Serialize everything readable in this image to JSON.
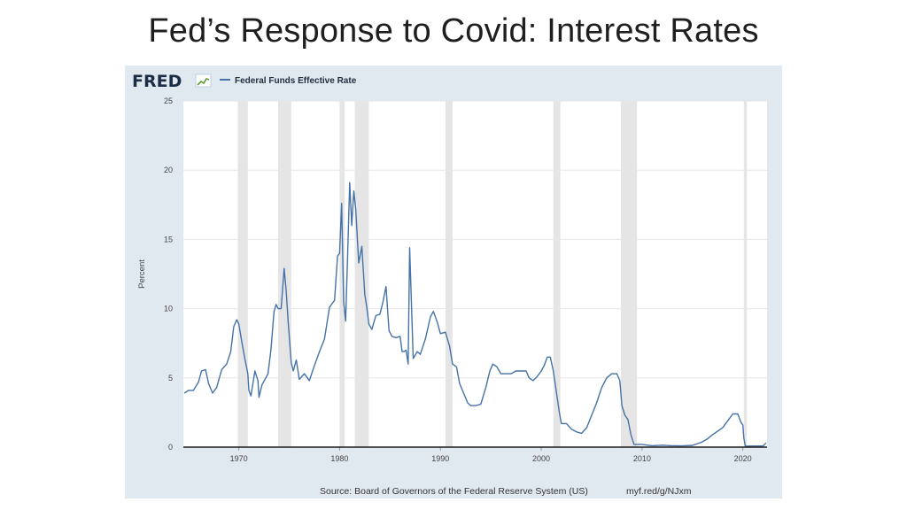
{
  "slide": {
    "title": "Fed’s Response to Covid: Interest Rates"
  },
  "logo": {
    "text": "FRED"
  },
  "colors": {
    "series": "#4572a7",
    "panel": "#e1e9f0",
    "plot": "#ffffff",
    "recession": "#e5e5e5"
  },
  "source": {
    "text": "Source: Board of Governors of the Federal Reserve System (US)",
    "url": "myf.red/g/NJxm"
  },
  "chart_data": {
    "type": "line",
    "title": "",
    "xlabel": "",
    "ylabel": "Percent",
    "xlim": [
      1964.5,
      2022.4
    ],
    "ylim": [
      0,
      25
    ],
    "x_ticks": [
      1970,
      1980,
      1990,
      2000,
      2010,
      2020
    ],
    "y_ticks": [
      0,
      5,
      10,
      15,
      20,
      25
    ],
    "grid": true,
    "legend": "top-left",
    "recessions": [
      [
        1969.9,
        1970.9
      ],
      [
        1973.9,
        1975.2
      ],
      [
        1980.0,
        1980.5
      ],
      [
        1981.5,
        1982.9
      ],
      [
        1990.5,
        1991.2
      ],
      [
        2001.2,
        2001.9
      ],
      [
        2007.9,
        2009.5
      ],
      [
        2020.1,
        2020.4
      ]
    ],
    "series": [
      {
        "name": "Federal Funds Effective Rate",
        "x": [
          1964.6,
          1965.0,
          1965.5,
          1966.0,
          1966.3,
          1966.7,
          1967.0,
          1967.4,
          1967.8,
          1968.3,
          1968.8,
          1969.2,
          1969.5,
          1969.8,
          1970.0,
          1970.3,
          1970.6,
          1970.9,
          1971.0,
          1971.2,
          1971.6,
          1971.9,
          1972.0,
          1972.3,
          1972.6,
          1972.9,
          1973.2,
          1973.5,
          1973.7,
          1973.9,
          1974.2,
          1974.5,
          1974.7,
          1974.9,
          1975.2,
          1975.4,
          1975.7,
          1976.0,
          1976.5,
          1977.0,
          1977.5,
          1978.0,
          1978.5,
          1979.0,
          1979.5,
          1979.8,
          1980.0,
          1980.2,
          1980.4,
          1980.6,
          1980.8,
          1981.0,
          1981.2,
          1981.4,
          1981.6,
          1981.9,
          1982.2,
          1982.5,
          1982.7,
          1982.9,
          1983.2,
          1983.6,
          1984.0,
          1984.3,
          1984.6,
          1984.9,
          1985.2,
          1985.6,
          1986.0,
          1986.2,
          1986.4,
          1986.6,
          1986.8,
          1986.95,
          1987.3,
          1987.7,
          1988.0,
          1988.5,
          1989.0,
          1989.3,
          1989.7,
          1990.0,
          1990.5,
          1990.9,
          1991.2,
          1991.6,
          1991.9,
          1992.3,
          1992.7,
          1993.0,
          1993.5,
          1994.0,
          1994.5,
          1994.9,
          1995.2,
          1995.6,
          1996.0,
          1996.5,
          1997.0,
          1997.5,
          1998.0,
          1998.5,
          1998.8,
          1999.2,
          1999.6,
          2000.0,
          2000.3,
          2000.6,
          2000.9,
          2001.2,
          2001.5,
          2001.8,
          2002.0,
          2002.5,
          2003.0,
          2003.5,
          2004.0,
          2004.5,
          2005.0,
          2005.5,
          2006.0,
          2006.5,
          2007.0,
          2007.5,
          2007.8,
          2008.0,
          2008.3,
          2008.6,
          2008.9,
          2009.2,
          2010.0,
          2011.0,
          2012.0,
          2013.0,
          2014.0,
          2015.0,
          2015.9,
          2016.5,
          2017.0,
          2017.5,
          2018.0,
          2018.5,
          2019.0,
          2019.5,
          2019.8,
          2020.0,
          2020.1,
          2020.25,
          2021.0,
          2022.0,
          2022.3
        ],
        "values": [
          3.9,
          4.1,
          4.1,
          4.7,
          5.5,
          5.6,
          4.6,
          3.9,
          4.3,
          5.6,
          6.0,
          6.9,
          8.7,
          9.2,
          8.9,
          7.6,
          6.4,
          5.3,
          4.1,
          3.7,
          5.5,
          4.8,
          3.6,
          4.5,
          4.9,
          5.3,
          7.1,
          9.8,
          10.3,
          10.0,
          10.0,
          12.9,
          11.3,
          9.0,
          6.1,
          5.5,
          6.3,
          4.9,
          5.3,
          4.8,
          5.9,
          6.9,
          7.8,
          10.1,
          10.6,
          13.8,
          14.0,
          17.6,
          10.5,
          9.1,
          13.9,
          19.1,
          16.0,
          18.5,
          17.2,
          13.3,
          14.5,
          11.0,
          10.1,
          8.9,
          8.5,
          9.5,
          9.6,
          10.5,
          11.6,
          8.4,
          8.0,
          7.9,
          8.0,
          6.9,
          6.9,
          7.0,
          6.0,
          14.4,
          6.4,
          6.9,
          6.7,
          7.8,
          9.4,
          9.8,
          9.0,
          8.2,
          8.3,
          7.3,
          6.0,
          5.8,
          4.6,
          3.9,
          3.2,
          3.0,
          3.0,
          3.1,
          4.3,
          5.5,
          6.0,
          5.8,
          5.3,
          5.3,
          5.3,
          5.5,
          5.5,
          5.5,
          5.0,
          4.8,
          5.1,
          5.5,
          5.9,
          6.5,
          6.5,
          5.5,
          4.0,
          2.5,
          1.7,
          1.7,
          1.3,
          1.1,
          1.0,
          1.4,
          2.3,
          3.2,
          4.3,
          5.0,
          5.3,
          5.3,
          4.8,
          3.0,
          2.3,
          2.0,
          0.9,
          0.2,
          0.2,
          0.1,
          0.14,
          0.1,
          0.09,
          0.13,
          0.35,
          0.6,
          0.9,
          1.15,
          1.4,
          1.9,
          2.4,
          2.4,
          1.8,
          1.6,
          0.65,
          0.07,
          0.08,
          0.08,
          0.3
        ]
      }
    ]
  }
}
